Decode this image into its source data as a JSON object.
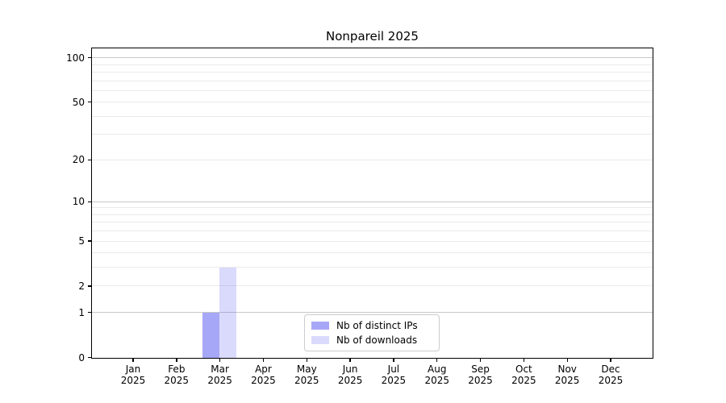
{
  "chart_data": {
    "type": "bar",
    "title": "Nonpareil 2025",
    "categories": [
      "Jan 2025",
      "Feb 2025",
      "Mar 2025",
      "Apr 2025",
      "May 2025",
      "Jun 2025",
      "Jul 2025",
      "Aug 2025",
      "Sep 2025",
      "Oct 2025",
      "Nov 2025",
      "Dec 2025"
    ],
    "series": [
      {
        "name": "Nb of distinct IPs",
        "color": "rgba(68,68,238,0.47)",
        "values": [
          0,
          0,
          1,
          0,
          0,
          0,
          0,
          0,
          0,
          0,
          0,
          0
        ]
      },
      {
        "name": "Nb of downloads",
        "color": "rgba(68,68,238,0.20)",
        "values": [
          0,
          0,
          3,
          0,
          0,
          0,
          0,
          0,
          0,
          0,
          0,
          0
        ]
      }
    ],
    "xlabel": "",
    "ylabel": "",
    "yscale": "log1p",
    "ylim": [
      0,
      115
    ],
    "yticks": [
      0,
      1,
      2,
      5,
      10,
      20,
      50,
      100
    ],
    "minor_yticks": [
      3,
      4,
      6,
      7,
      8,
      9,
      30,
      40,
      60,
      70,
      80,
      90
    ],
    "grid": "on",
    "legend_position": "inside lower-center",
    "colors": {
      "grid_decade": "#c8c8c8",
      "grid_minor": "#eaeaea",
      "axis": "#000000",
      "background": "#ffffff"
    }
  }
}
